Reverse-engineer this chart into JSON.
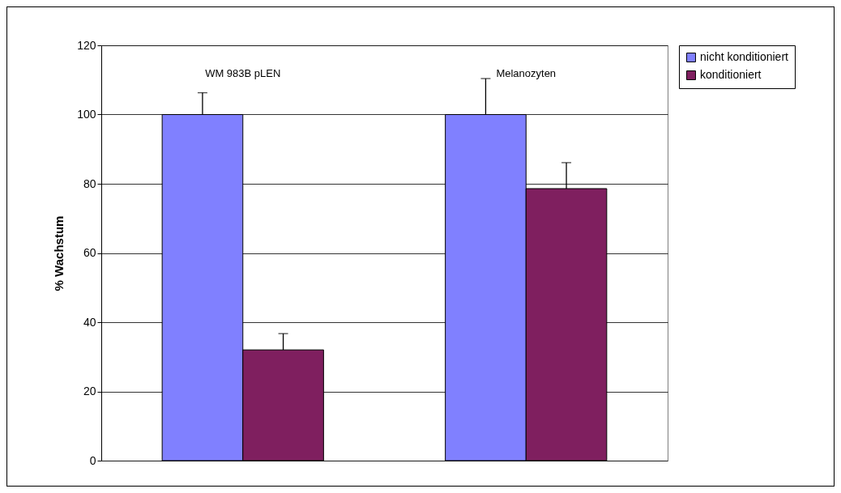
{
  "chart_data": {
    "type": "bar",
    "ylabel": "% Wachstum",
    "categories": [
      "WM 983B pLEN",
      "Melanozyten"
    ],
    "series": [
      {
        "name": "nicht konditioniert",
        "color": "#8080ff",
        "values": [
          100,
          100
        ],
        "errors": [
          [
            100,
            106.3
          ],
          [
            100,
            110.4
          ]
        ]
      },
      {
        "name": "konditioniert",
        "color": "#7f1f5f",
        "values": [
          32,
          78.6
        ],
        "errors": [
          [
            32,
            36.7
          ],
          [
            78.6,
            86.1
          ]
        ]
      }
    ],
    "ylim": [
      0,
      120
    ],
    "yticks": [
      0,
      20,
      40,
      60,
      80,
      100,
      120
    ],
    "grid": "y",
    "legend": "right"
  }
}
